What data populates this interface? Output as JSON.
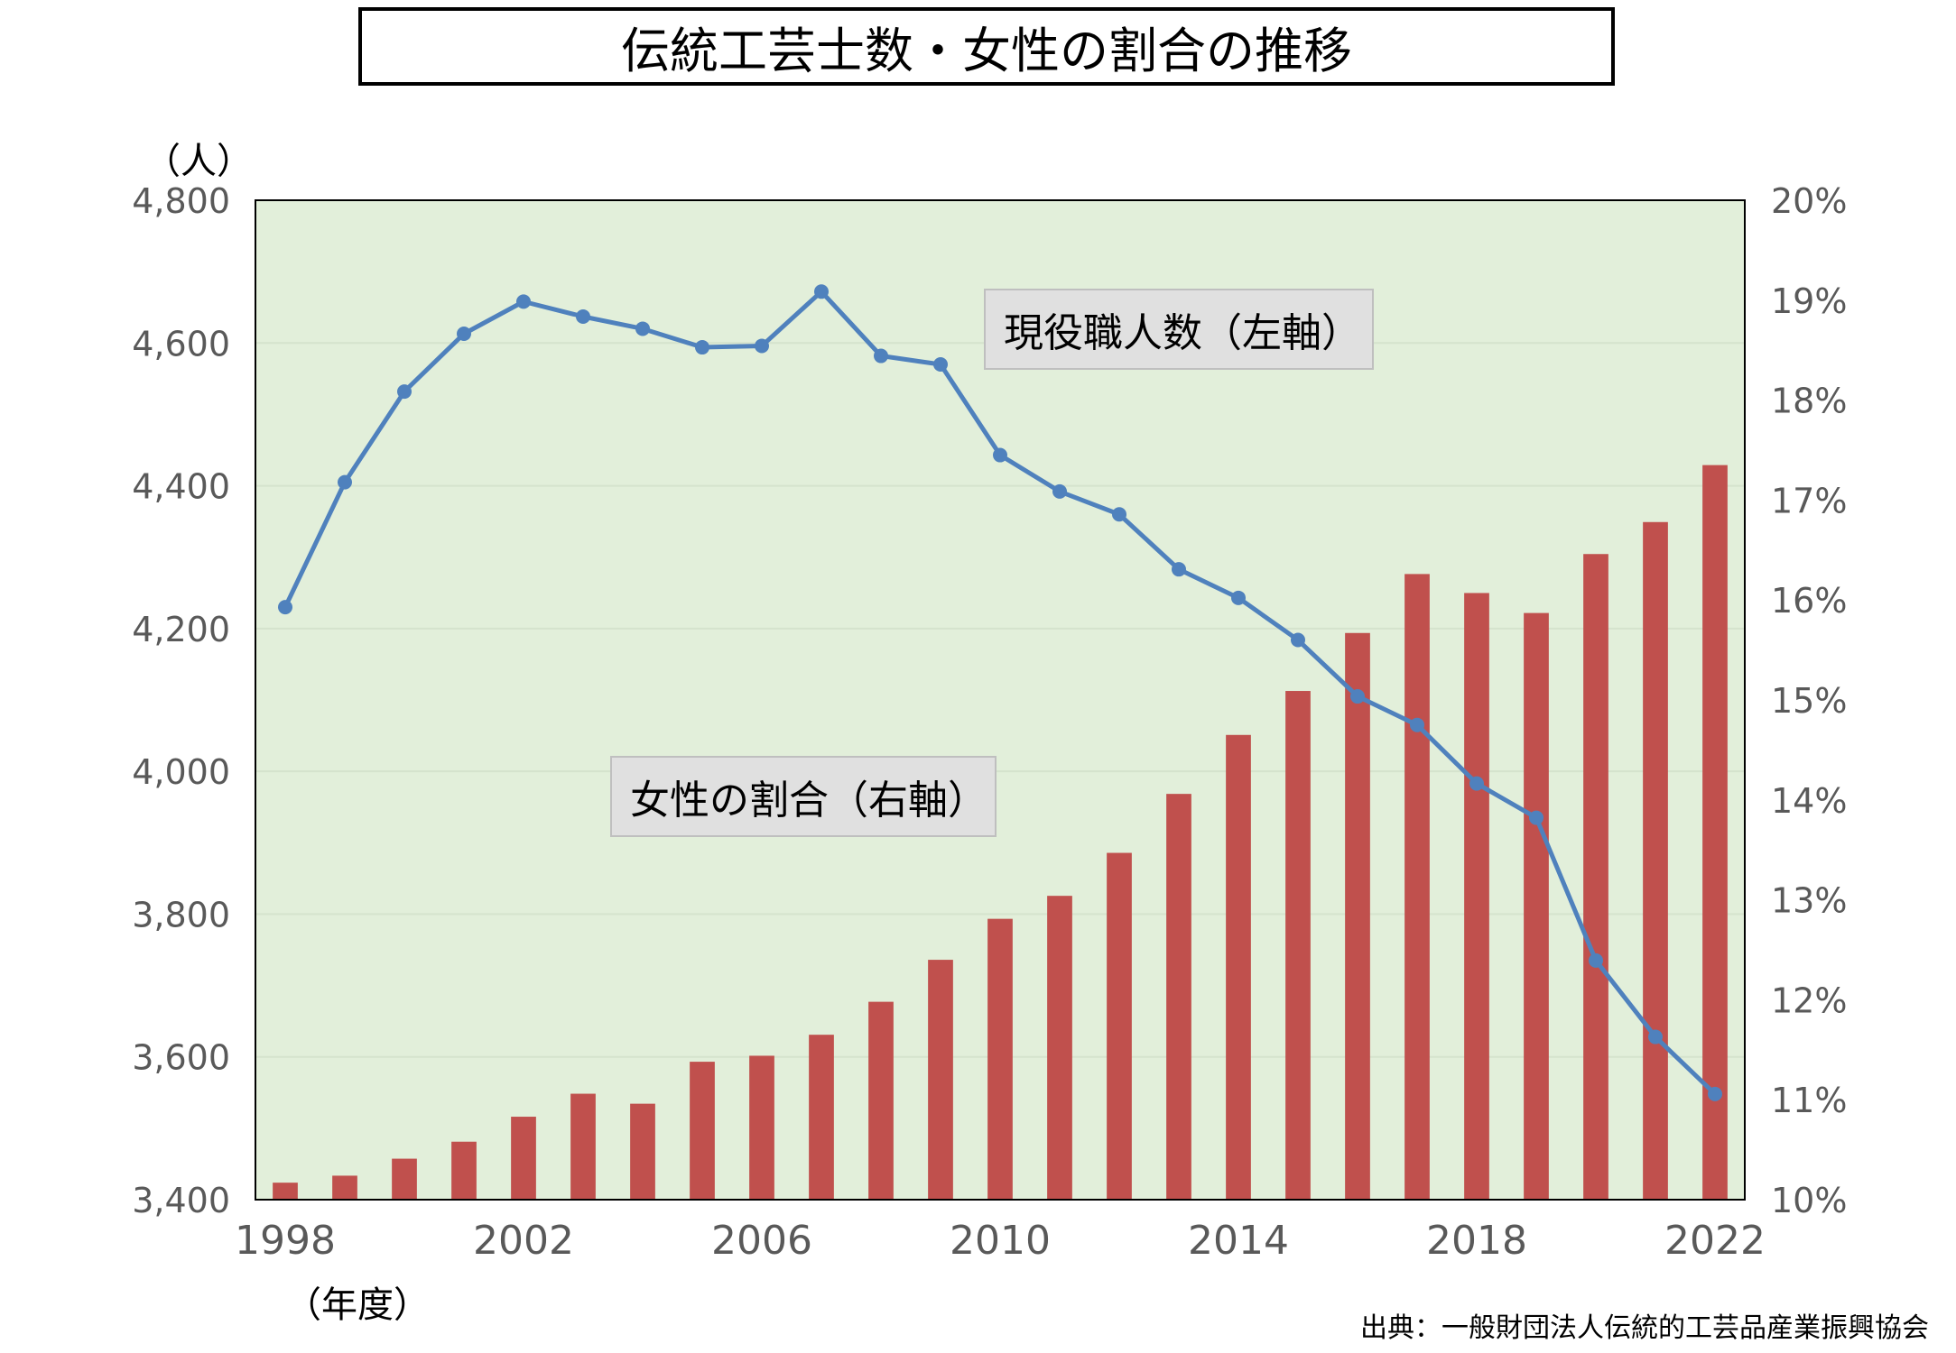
{
  "chart_data": {
    "type": "bar+line",
    "title": "伝統工芸士数・女性の割合の推移",
    "y_unit": "（人）",
    "x_unit": "（年度）",
    "source": "出典：一般財団法人伝統的工芸品産業振興協会",
    "x": [
      1998,
      1999,
      2000,
      2001,
      2002,
      2003,
      2004,
      2005,
      2006,
      2007,
      2008,
      2009,
      2010,
      2011,
      2012,
      2013,
      2014,
      2015,
      2016,
      2017,
      2018,
      2019,
      2020,
      2021,
      2022
    ],
    "x_tick_labels": [
      "1998",
      "2002",
      "2006",
      "2010",
      "2014",
      "2018",
      "2022"
    ],
    "y_left_ticks": [
      "3,400",
      "3,600",
      "3,800",
      "4,000",
      "4,200",
      "4,400",
      "4,600",
      "4,800"
    ],
    "y_right_ticks": [
      "10%",
      "11%",
      "12%",
      "13%",
      "14%",
      "15%",
      "16%",
      "17%",
      "18%",
      "19%",
      "20%"
    ],
    "ylim_left": [
      3400,
      4800
    ],
    "ylim_right": [
      10,
      20
    ],
    "plot_background": "#e2efda",
    "series": [
      {
        "name": "現役職人数（左軸）",
        "kind": "line",
        "axis": "left",
        "color": "#4f81bd",
        "values": [
          4230,
          4405,
          4532,
          4613,
          4658,
          4637,
          4620,
          4594,
          4596,
          4672,
          4582,
          4570,
          4443,
          4392,
          4360,
          4283,
          4243,
          4184,
          4105,
          4065,
          3983,
          3935,
          3735,
          3628,
          3548
        ]
      },
      {
        "name": "女性の割合（右軸）",
        "kind": "bar",
        "axis": "right",
        "color": "#c0504d",
        "values": [
          10.17,
          10.24,
          10.41,
          10.58,
          10.83,
          11.06,
          10.96,
          11.38,
          11.44,
          11.65,
          11.98,
          12.4,
          12.81,
          13.04,
          13.47,
          14.06,
          14.65,
          15.09,
          15.67,
          16.26,
          16.07,
          15.87,
          16.46,
          16.78,
          17.35
        ]
      }
    ]
  }
}
